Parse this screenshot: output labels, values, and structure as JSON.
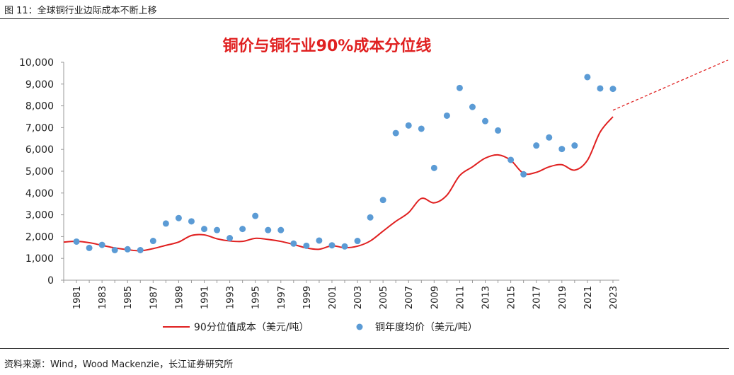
{
  "figure_caption": "图 11：全球铜行业边际成本不断上移",
  "source": "资料来源：Wind，Wood Mackenzie，长江证券研究所",
  "colors": {
    "cost_line": "#e02020",
    "price_dots": "#5b9bd5",
    "title": "#e02020"
  },
  "chart_data": {
    "type": "line",
    "title": "铜价与铜行业90%成本分位线",
    "xlabel": "",
    "ylabel": "",
    "ylim": [
      0,
      10000
    ],
    "yticks": [
      "0",
      "1,000",
      "2,000",
      "3,000",
      "4,000",
      "5,000",
      "6,000",
      "7,000",
      "8,000",
      "9,000",
      "10,000"
    ],
    "xtick_labels": [
      "1981",
      "1983",
      "1985",
      "1987",
      "1989",
      "1991",
      "1993",
      "1995",
      "1997",
      "1999",
      "2001",
      "2003",
      "2005",
      "2007",
      "2009",
      "2011",
      "2013",
      "2015",
      "2017",
      "2019",
      "2021",
      "2023"
    ],
    "grid": false,
    "legend_position": "bottom",
    "series": [
      {
        "name": "90分位值成本（美元/吨）",
        "style": "line",
        "x": [
          1980,
          1981,
          1982,
          1983,
          1984,
          1985,
          1986,
          1987,
          1988,
          1989,
          1990,
          1991,
          1992,
          1993,
          1994,
          1995,
          1996,
          1997,
          1998,
          1999,
          2000,
          2001,
          2002,
          2003,
          2004,
          2005,
          2006,
          2007,
          2008,
          2009,
          2010,
          2011,
          2012,
          2013,
          2014,
          2015,
          2016,
          2017,
          2018,
          2019,
          2020,
          2021,
          2022,
          2023
        ],
        "values": [
          1750,
          1780,
          1720,
          1600,
          1480,
          1400,
          1350,
          1450,
          1600,
          1750,
          2050,
          2080,
          1900,
          1800,
          1780,
          1920,
          1870,
          1780,
          1640,
          1480,
          1420,
          1580,
          1490,
          1560,
          1800,
          2250,
          2700,
          3100,
          3750,
          3550,
          3900,
          4800,
          5200,
          5600,
          5750,
          5500,
          4900,
          4950,
          5200,
          5300,
          5050,
          5500,
          6800,
          7500
        ]
      },
      {
        "name": "铜年度均价（美元/吨）",
        "style": "scatter",
        "x": [
          1981,
          1982,
          1983,
          1984,
          1985,
          1986,
          1987,
          1988,
          1989,
          1990,
          1991,
          1992,
          1993,
          1994,
          1995,
          1996,
          1997,
          1998,
          1999,
          2000,
          2001,
          2002,
          2003,
          2004,
          2005,
          2006,
          2007,
          2008,
          2009,
          2010,
          2011,
          2012,
          2013,
          2014,
          2015,
          2016,
          2017,
          2018,
          2019,
          2020,
          2021,
          2022,
          2023
        ],
        "values": [
          1770,
          1480,
          1620,
          1380,
          1420,
          1380,
          1800,
          2600,
          2850,
          2700,
          2350,
          2300,
          1930,
          2350,
          2950,
          2300,
          2300,
          1680,
          1580,
          1820,
          1600,
          1550,
          1800,
          2880,
          3680,
          6750,
          7100,
          6950,
          5150,
          7550,
          8820,
          7950,
          7300,
          6870,
          5520,
          4860,
          6180,
          6550,
          6020,
          6180,
          9320,
          8800,
          8780
        ]
      },
      {
        "name": "",
        "style": "dashed-trend",
        "x": [
          2023,
          2032
        ],
        "values": [
          7800,
          10100
        ]
      }
    ]
  }
}
